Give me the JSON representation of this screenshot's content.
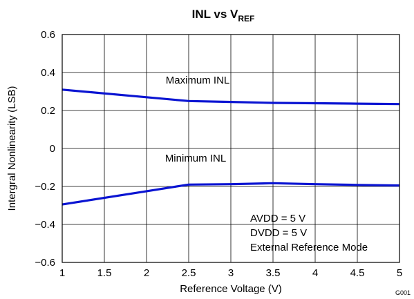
{
  "chart_data": {
    "type": "line",
    "title": {
      "main": "INL vs V",
      "subscript": "REF"
    },
    "xlabel": "Reference Voltage (V)",
    "ylabel": "Intergral Nonlinearity (LSB)",
    "xlim": [
      1,
      5
    ],
    "ylim": [
      -0.6,
      0.6
    ],
    "xticks": [
      1,
      1.5,
      2,
      2.5,
      3,
      3.5,
      4,
      4.5,
      5
    ],
    "xtick_labels": [
      "1",
      "1.5",
      "2",
      "2.5",
      "3",
      "3.5",
      "4",
      "4.5",
      "5"
    ],
    "yticks": [
      -0.6,
      -0.4,
      -0.2,
      0,
      0.2,
      0.4,
      0.6
    ],
    "ytick_labels": [
      "−0.6",
      "−0.4",
      "−0.2",
      "0",
      "0.2",
      "0.4",
      "0.6"
    ],
    "grid": true,
    "series": [
      {
        "name": "Maximum INL",
        "color": "#0a14d2",
        "x": [
          1,
          2,
          2.5,
          3,
          3.5,
          4,
          4.5,
          5
        ],
        "y": [
          0.31,
          0.27,
          0.25,
          0.245,
          0.24,
          0.238,
          0.236,
          0.234
        ]
      },
      {
        "name": "Minimum INL",
        "color": "#0a14d2",
        "x": [
          1,
          2,
          2.5,
          3,
          3.5,
          4,
          4.5,
          5
        ],
        "y": [
          -0.295,
          -0.225,
          -0.19,
          -0.188,
          -0.183,
          -0.188,
          -0.192,
          -0.195
        ]
      }
    ],
    "annotations": [
      "AVDD = 5 V",
      "DVDD = 5 V",
      "External Reference Mode"
    ],
    "figure_code": "G001"
  }
}
